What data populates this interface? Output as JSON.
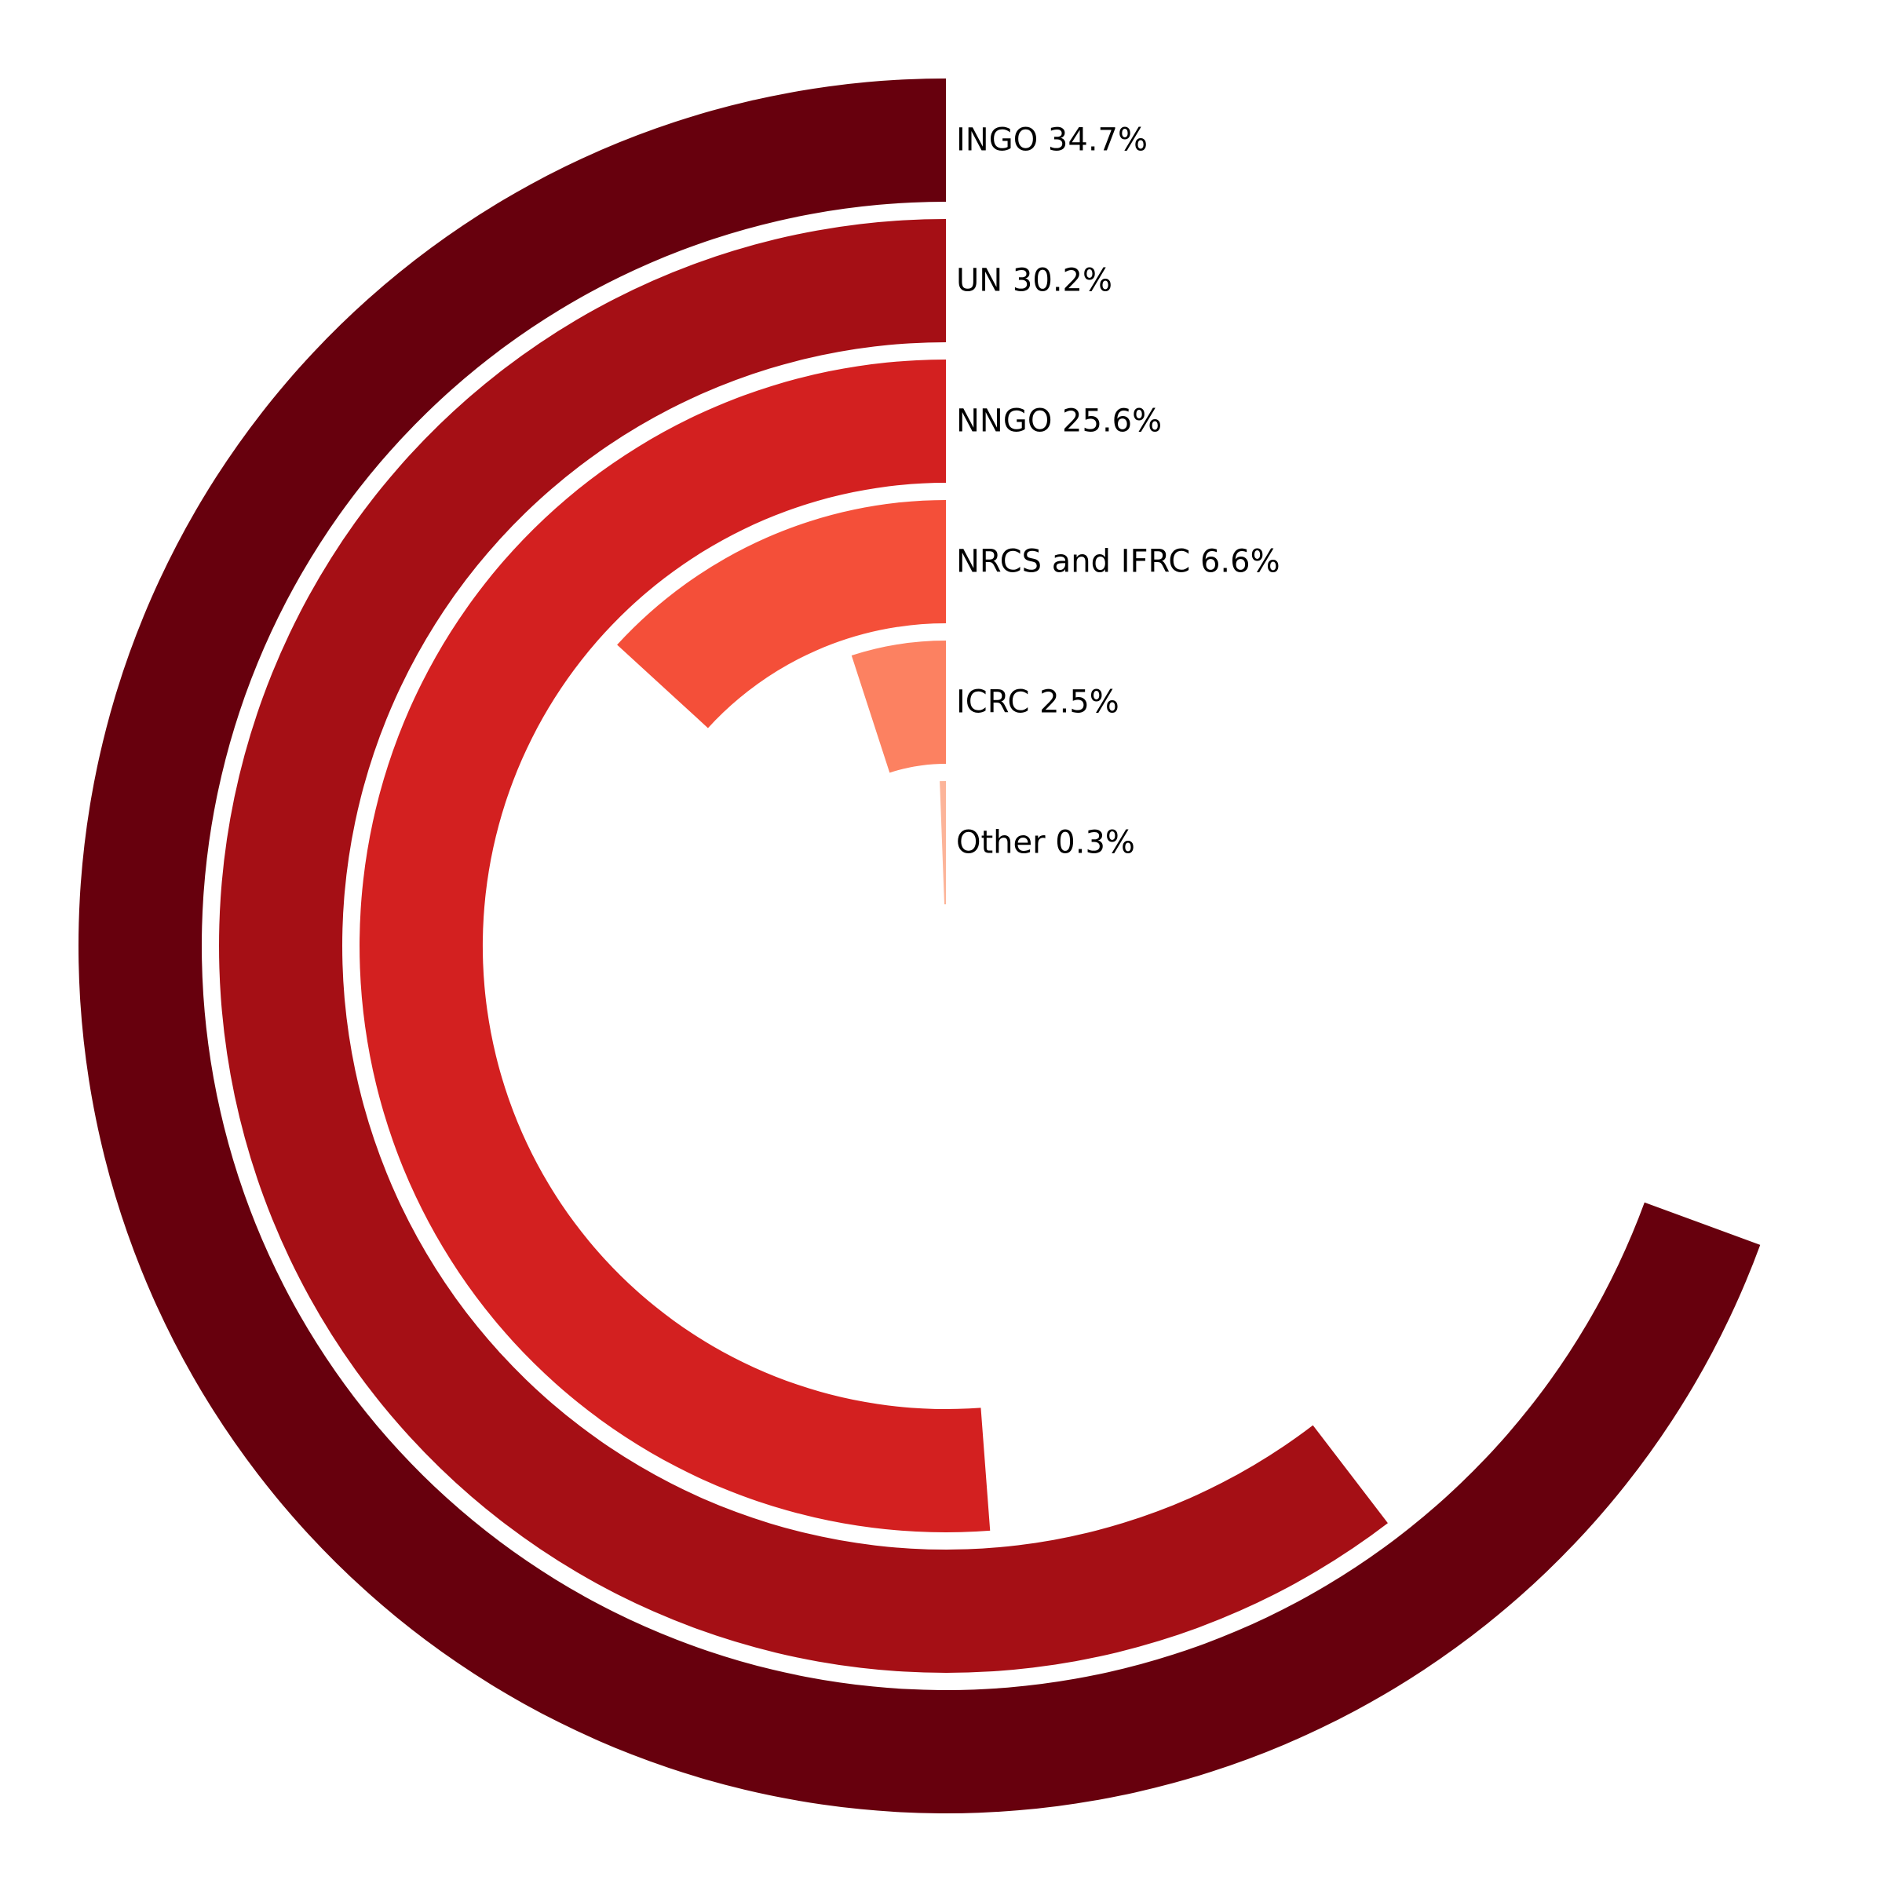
{
  "chart_data": {
    "type": "bar",
    "subtype": "radial-bar",
    "categories": [
      "INGO",
      "UN",
      "NNGO",
      "NRCS and IFRC",
      "ICRC",
      "Other"
    ],
    "values": [
      34.7,
      30.2,
      25.6,
      6.6,
      2.5,
      0.3
    ],
    "labels": [
      "INGO 34.7%",
      "UN 30.2%",
      "NNGO 25.6%",
      "NRCS and IFRC 6.6%",
      "ICRC 2.5%",
      "Other 0.3%"
    ],
    "colors": [
      "#67000d",
      "#a50f15",
      "#d32020",
      "#f44f39",
      "#fc8161",
      "#fcb499"
    ],
    "value_max": 50,
    "direction": "counterclockwise-from-top",
    "title": "",
    "legend": "none",
    "grid": false
  }
}
